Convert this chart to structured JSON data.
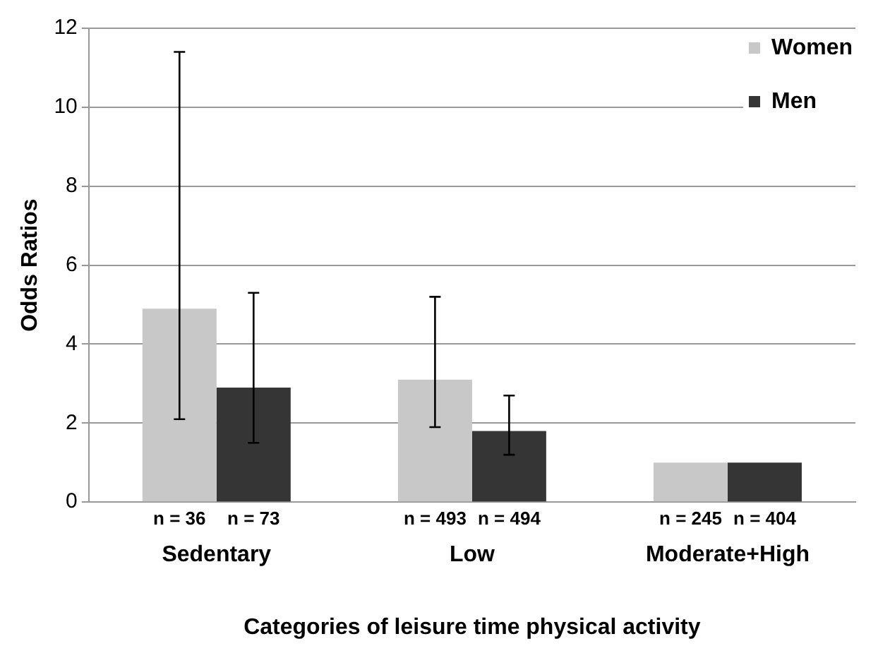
{
  "chart_data": {
    "type": "bar",
    "xlabel": "Categories of leisure time physical activity",
    "ylabel": "Odds Ratios",
    "categories": [
      "Sedentary",
      "Low",
      "Moderate+High"
    ],
    "series": [
      {
        "name": "Women",
        "color": "#c8c8c8",
        "values": [
          4.9,
          3.1,
          1
        ],
        "errors": [
          [
            2.1,
            11.4
          ],
          [
            1.9,
            5.2
          ],
          null
        ]
      },
      {
        "name": "Men",
        "color": "#353535",
        "values": [
          2.9,
          1.8,
          1
        ],
        "errors": [
          [
            1.5,
            5.3
          ],
          [
            1.2,
            2.7
          ],
          null
        ]
      }
    ],
    "annotations": [
      "n = 36",
      "n = 73",
      "n = 493",
      "n = 494",
      "n = 245",
      "n = 404"
    ],
    "ylim": [
      0,
      12
    ],
    "yticks": [
      0,
      2,
      4,
      6,
      8,
      10,
      12
    ],
    "grid": "y",
    "legend": "top right"
  }
}
